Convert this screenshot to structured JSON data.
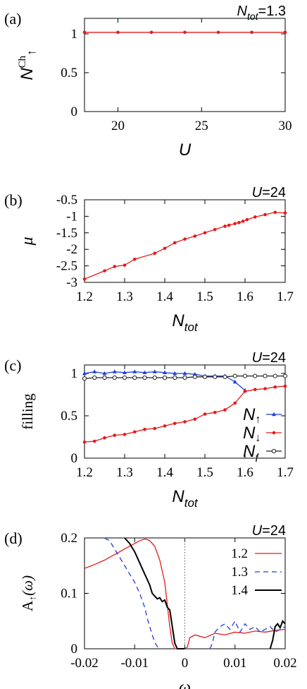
{
  "chart_data": [
    {
      "type": "line",
      "panel_label": "(a)",
      "corner_text": {
        "main": "N",
        "sub": "tot",
        "rest": "=1.3"
      },
      "ylabel": {
        "main": "N",
        "sup": "Ch",
        "sub": "↑"
      },
      "xlabel": "U",
      "xlim": [
        18,
        30
      ],
      "ylim": [
        0,
        1.2
      ],
      "x_ticks": [
        "20",
        "25",
        "30"
      ],
      "y_ticks": [
        "0",
        "0.5",
        "1"
      ],
      "series": [
        {
          "color": "#e41a1c",
          "marker": "circle",
          "x": [
            18,
            20,
            22,
            24,
            26,
            28,
            30
          ],
          "y": [
            1.02,
            1.02,
            1.02,
            1.02,
            1.02,
            1.02,
            1.02
          ]
        }
      ]
    },
    {
      "type": "line",
      "panel_label": "(b)",
      "corner_text": {
        "main": "U",
        "rest": "=24"
      },
      "ylabel": {
        "main": "μ"
      },
      "xlabel": {
        "main": "N",
        "sub": "tot"
      },
      "xlim": [
        1.2,
        1.7
      ],
      "ylim": [
        -3,
        -0.5
      ],
      "x_ticks": [
        "1.2",
        "1.3",
        "1.4",
        "1.5",
        "1.6",
        "1.7"
      ],
      "y_ticks": [
        "-0.5",
        "-1",
        "-1.5",
        "-2",
        "-2.5",
        "-3"
      ],
      "series": [
        {
          "color": "#e41a1c",
          "marker": "circle",
          "x": [
            1.2,
            1.25,
            1.275,
            1.3,
            1.325,
            1.375,
            1.4,
            1.425,
            1.45,
            1.475,
            1.5,
            1.525,
            1.55,
            1.56,
            1.575,
            1.585,
            1.595,
            1.605,
            1.625,
            1.65,
            1.675,
            1.7
          ],
          "y": [
            -2.9,
            -2.65,
            -2.52,
            -2.48,
            -2.3,
            -2.12,
            -1.97,
            -1.8,
            -1.69,
            -1.6,
            -1.5,
            -1.4,
            -1.3,
            -1.27,
            -1.22,
            -1.19,
            -1.15,
            -1.1,
            -1.02,
            -0.95,
            -0.88,
            -0.9
          ]
        }
      ]
    },
    {
      "type": "line",
      "panel_label": "(c)",
      "corner_text": {
        "main": "U",
        "rest": "=24"
      },
      "ylabel": {
        "main": "filling"
      },
      "xlabel": {
        "main": "N",
        "sub": "tot"
      },
      "xlim": [
        1.2,
        1.7
      ],
      "ylim": [
        0,
        1.1
      ],
      "x_ticks": [
        "1.2",
        "1.3",
        "1.4",
        "1.5",
        "1.6",
        "1.7"
      ],
      "y_ticks": [
        "0",
        "0.5",
        "1"
      ],
      "legend": [
        {
          "main": "N",
          "sub": "↑"
        },
        {
          "main": "N",
          "sub": "↓"
        },
        {
          "main": "N",
          "sub": "f"
        }
      ],
      "series": [
        {
          "color": "#1f3fd6",
          "marker": "triangle",
          "x": [
            1.2,
            1.225,
            1.25,
            1.275,
            1.3,
            1.325,
            1.35,
            1.375,
            1.4,
            1.425,
            1.45,
            1.475,
            1.5,
            1.525,
            1.55,
            1.575,
            1.6
          ],
          "y": [
            1.0,
            1.02,
            1.0,
            1.02,
            1.01,
            1.02,
            1.01,
            1.02,
            1.01,
            1.0,
            1.0,
            0.99,
            0.97,
            0.97,
            0.97,
            0.9,
            0.8
          ]
        },
        {
          "color": "#e41a1c",
          "marker": "circle",
          "x": [
            1.2,
            1.225,
            1.25,
            1.275,
            1.3,
            1.325,
            1.35,
            1.375,
            1.4,
            1.425,
            1.45,
            1.475,
            1.5,
            1.525,
            1.55,
            1.575,
            1.6,
            1.625,
            1.65,
            1.675,
            1.7
          ],
          "y": [
            0.19,
            0.2,
            0.24,
            0.27,
            0.28,
            0.31,
            0.34,
            0.35,
            0.38,
            0.41,
            0.43,
            0.46,
            0.52,
            0.54,
            0.57,
            0.65,
            0.79,
            0.81,
            0.82,
            0.84,
            0.85
          ]
        },
        {
          "color": "#222222",
          "marker": "open-circle",
          "x": [
            1.2,
            1.225,
            1.25,
            1.275,
            1.3,
            1.325,
            1.35,
            1.375,
            1.4,
            1.425,
            1.45,
            1.475,
            1.5,
            1.525,
            1.55,
            1.575,
            1.6,
            1.625,
            1.65,
            1.675,
            1.7
          ],
          "y": [
            0.94,
            0.95,
            0.95,
            0.95,
            0.95,
            0.95,
            0.95,
            0.95,
            0.95,
            0.95,
            0.95,
            0.96,
            0.96,
            0.96,
            0.96,
            0.97,
            0.97,
            0.97,
            0.97,
            0.97,
            0.97
          ]
        }
      ]
    },
    {
      "type": "line",
      "panel_label": "(d)",
      "corner_text": {
        "main": "U",
        "rest": "=24"
      },
      "ylabel": {
        "main": "A",
        "sub": "↑",
        "rest": "(ω)"
      },
      "xlabel": "ω",
      "xlim": [
        -0.02,
        0.02
      ],
      "ylim": [
        0,
        0.2
      ],
      "x_ticks": [
        "-0.02",
        "-0.01",
        "0",
        "0.01",
        "0.02"
      ],
      "y_ticks": [
        "0",
        "0.1",
        "0.2"
      ],
      "legend": [
        "1.2",
        "1.3",
        "1.4"
      ],
      "series": [
        {
          "name": "1.2",
          "color": "#e41a1c",
          "dash": "none",
          "x": [
            -0.02,
            -0.018,
            -0.016,
            -0.014,
            -0.012,
            -0.01,
            -0.009,
            -0.008,
            -0.0075,
            -0.007,
            -0.006,
            -0.005,
            -0.004,
            -0.0035,
            -0.003,
            -0.0025,
            -0.002,
            -0.0015,
            -0.001,
            0.0,
            0.0005,
            0.001,
            0.002,
            0.004,
            0.006,
            0.008,
            0.01,
            0.012,
            0.014,
            0.016,
            0.018,
            0.02
          ],
          "y": [
            0.145,
            0.152,
            0.16,
            0.17,
            0.18,
            0.19,
            0.195,
            0.198,
            0.197,
            0.195,
            0.185,
            0.16,
            0.12,
            0.08,
            0.04,
            0.01,
            0.0,
            0.0,
            0.0,
            0.0,
            0.003,
            0.02,
            0.025,
            0.02,
            0.028,
            0.025,
            0.03,
            0.028,
            0.032,
            0.03,
            0.033,
            0.035
          ]
        },
        {
          "name": "1.3",
          "color": "#1f3fd6",
          "dash": "dashed",
          "x": [
            -0.016,
            -0.015,
            -0.014,
            -0.013,
            -0.012,
            -0.011,
            -0.01,
            -0.009,
            -0.008,
            -0.0075,
            -0.007,
            -0.0065,
            -0.006,
            -0.0055,
            -0.005,
            0.005,
            0.0055,
            0.006,
            0.007,
            0.008,
            0.009,
            0.01,
            0.011,
            0.012,
            0.013,
            0.014,
            0.015,
            0.016,
            0.017,
            0.018,
            0.019,
            0.02
          ],
          "y": [
            0.2,
            0.195,
            0.18,
            0.165,
            0.15,
            0.135,
            0.12,
            0.1,
            0.075,
            0.055,
            0.04,
            0.025,
            0.012,
            0.004,
            0.0,
            0.0,
            0.01,
            0.03,
            0.04,
            0.045,
            0.035,
            0.05,
            0.03,
            0.045,
            0.035,
            0.04,
            0.03,
            0.035,
            0.04,
            0.03,
            0.035,
            0.04
          ]
        },
        {
          "name": "1.4",
          "color": "#000000",
          "dash": "none",
          "x": [
            -0.012,
            -0.011,
            -0.01,
            -0.009,
            -0.008,
            -0.007,
            -0.0065,
            -0.006,
            -0.0055,
            -0.005,
            -0.0045,
            -0.004,
            -0.0035,
            -0.003,
            -0.0025,
            -0.002,
            -0.0015,
            -0.001,
            0.0,
            0.017,
            0.0175,
            0.018,
            0.0185,
            0.019,
            0.0195,
            0.02
          ],
          "y": [
            0.2,
            0.19,
            0.175,
            0.155,
            0.135,
            0.115,
            0.1,
            0.095,
            0.09,
            0.092,
            0.085,
            0.088,
            0.075,
            0.07,
            0.04,
            0.01,
            0.0,
            0.0,
            0.0,
            0.0,
            0.015,
            0.04,
            0.045,
            0.038,
            0.05,
            0.045
          ]
        }
      ]
    }
  ]
}
